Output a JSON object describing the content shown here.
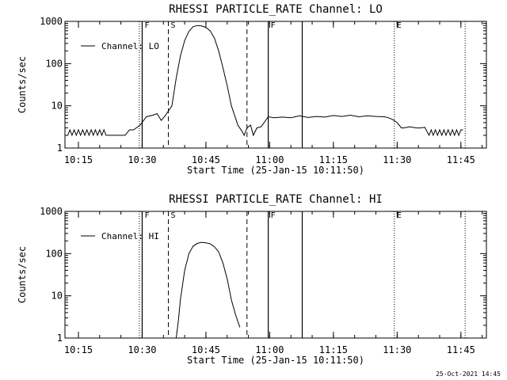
{
  "footer": {
    "timestamp": "25-Oct-2021 14:45"
  },
  "chart_data": [
    {
      "type": "line",
      "title": "RHESSI PARTICLE_RATE Channel: LO",
      "xlabel": "Start Time (25-Jan-15 10:11:50)",
      "ylabel": "Counts/sec",
      "yscale": "log",
      "ylim": [
        1,
        1000
      ],
      "yticks": [
        1,
        10,
        100,
        1000
      ],
      "ytick_labels": [
        "1",
        "10",
        "100",
        "1000"
      ],
      "xlim": [
        "10:11:50",
        "11:51:00"
      ],
      "xticks": [
        "10:15",
        "10:30",
        "10:45",
        "11:00",
        "11:15",
        "11:30",
        "11:45"
      ],
      "grid": false,
      "legend": {
        "position": "top-left",
        "entries": [
          "Channel: LO"
        ]
      },
      "markers": [
        {
          "time": "10:29:20",
          "style": "dotted",
          "label": ""
        },
        {
          "time": "10:30:00",
          "style": "solid",
          "label": "F"
        },
        {
          "time": "10:36:10",
          "style": "dashed",
          "label": "S"
        },
        {
          "time": "10:54:40",
          "style": "dashed",
          "label": ""
        },
        {
          "time": "10:59:40",
          "style": "solid",
          "label": "F"
        },
        {
          "time": "11:07:40",
          "style": "solid",
          "label": ""
        },
        {
          "time": "11:29:20",
          "style": "dotted",
          "label": "E"
        },
        {
          "time": "11:46:00",
          "style": "dotted",
          "label": ""
        }
      ],
      "series": [
        {
          "name": "Channel: LO",
          "x": [
            "10:12:30",
            "10:13:00",
            "10:13:30",
            "10:14:00",
            "10:14:30",
            "10:15:00",
            "10:15:30",
            "10:16:00",
            "10:16:30",
            "10:17:00",
            "10:17:30",
            "10:18:00",
            "10:18:30",
            "10:19:00",
            "10:19:30",
            "10:20:00",
            "10:20:30",
            "10:21:00",
            "10:21:30",
            "10:22:00",
            "10:24:00",
            "10:26:00",
            "10:27:00",
            "10:28:00",
            "10:29:30",
            "10:31:00",
            "10:32:30",
            "10:33:30",
            "10:34:30",
            "10:35:30",
            "10:37:00",
            "10:38:00",
            "10:39:00",
            "10:40:00",
            "10:41:00",
            "10:42:00",
            "10:43:00",
            "10:44:00",
            "10:45:00",
            "10:46:00",
            "10:47:00",
            "10:48:00",
            "10:49:00",
            "10:50:00",
            "10:51:00",
            "10:52:00",
            "10:52:30",
            "10:53:30",
            "10:54:00",
            "10:54:40",
            "10:55:30",
            "10:56:10",
            "10:57:00",
            "10:58:00",
            "10:59:40",
            "11:01:00",
            "11:03:00",
            "11:05:00",
            "11:06:00",
            "11:07:00",
            "11:09:00",
            "11:11:00",
            "11:13:00",
            "11:15:00",
            "11:17:00",
            "11:19:00",
            "11:21:00",
            "11:23:00",
            "11:25:00",
            "11:27:00",
            "11:28:00",
            "11:29:00",
            "11:30:00",
            "11:31:00",
            "11:31:30",
            "11:33:00",
            "11:34:30",
            "11:35:30",
            "11:36:30",
            "11:37:30",
            "11:38:00",
            "11:38:30",
            "11:39:00",
            "11:39:30",
            "11:40:00",
            "11:40:30",
            "11:41:00",
            "11:41:30",
            "11:42:00",
            "11:42:30",
            "11:43:00",
            "11:43:30",
            "11:44:00",
            "11:44:30",
            "11:45:00",
            "11:45:30"
          ],
          "y": [
            2,
            2.7,
            2,
            2.7,
            2,
            2.7,
            2,
            2.7,
            2,
            2.7,
            2,
            2.7,
            2,
            2.7,
            2,
            2.7,
            2,
            2.7,
            2,
            2,
            2,
            2,
            2.7,
            2.7,
            3.5,
            5.5,
            6,
            6.5,
            4.5,
            6,
            10,
            45,
            150,
            350,
            580,
            750,
            800,
            780,
            720,
            600,
            400,
            200,
            80,
            30,
            10,
            5,
            3.5,
            2.5,
            2,
            3,
            3.5,
            2,
            3,
            3.2,
            5.5,
            5.2,
            5.4,
            5.2,
            5.5,
            5.8,
            5.3,
            5.6,
            5.4,
            5.9,
            5.6,
            6,
            5.5,
            5.8,
            5.6,
            5.5,
            5.2,
            4.7,
            4,
            3,
            3,
            3.2,
            3,
            3,
            3.1,
            2,
            2.7,
            2,
            2.7,
            2,
            2.7,
            2,
            2.7,
            2,
            2.7,
            2,
            2.7,
            2,
            2.7,
            2,
            2.7,
            2.7
          ]
        }
      ]
    },
    {
      "type": "line",
      "title": "RHESSI PARTICLE_RATE Channel: HI",
      "xlabel": "Start Time (25-Jan-15 10:11:50)",
      "ylabel": "Counts/sec",
      "yscale": "log",
      "ylim": [
        1,
        1000
      ],
      "yticks": [
        1,
        10,
        100,
        1000
      ],
      "ytick_labels": [
        "1",
        "10",
        "100",
        "1000"
      ],
      "xlim": [
        "10:11:50",
        "11:51:00"
      ],
      "xticks": [
        "10:15",
        "10:30",
        "10:45",
        "11:00",
        "11:15",
        "11:30",
        "11:45"
      ],
      "grid": false,
      "legend": {
        "position": "top-left",
        "entries": [
          "Channel: HI"
        ]
      },
      "markers": [
        {
          "time": "10:29:20",
          "style": "dotted",
          "label": ""
        },
        {
          "time": "10:30:00",
          "style": "solid",
          "label": "F"
        },
        {
          "time": "10:36:10",
          "style": "dashed",
          "label": "S"
        },
        {
          "time": "10:54:40",
          "style": "dashed",
          "label": ""
        },
        {
          "time": "10:59:40",
          "style": "solid",
          "label": "F"
        },
        {
          "time": "11:07:40",
          "style": "solid",
          "label": ""
        },
        {
          "time": "11:29:20",
          "style": "dotted",
          "label": "E"
        },
        {
          "time": "11:46:00",
          "style": "dotted",
          "label": ""
        }
      ],
      "series": [
        {
          "name": "Channel: HI",
          "x": [
            "10:38:00",
            "10:38:30",
            "10:39:00",
            "10:40:00",
            "10:41:00",
            "10:42:00",
            "10:43:00",
            "10:44:00",
            "10:45:00",
            "10:46:00",
            "10:47:00",
            "10:48:00",
            "10:49:00",
            "10:50:00",
            "10:51:00",
            "10:52:00",
            "10:53:00"
          ],
          "y": [
            1,
            2.5,
            8,
            40,
            100,
            150,
            175,
            185,
            180,
            170,
            145,
            110,
            60,
            25,
            8,
            3.5,
            1.8
          ]
        }
      ]
    }
  ]
}
